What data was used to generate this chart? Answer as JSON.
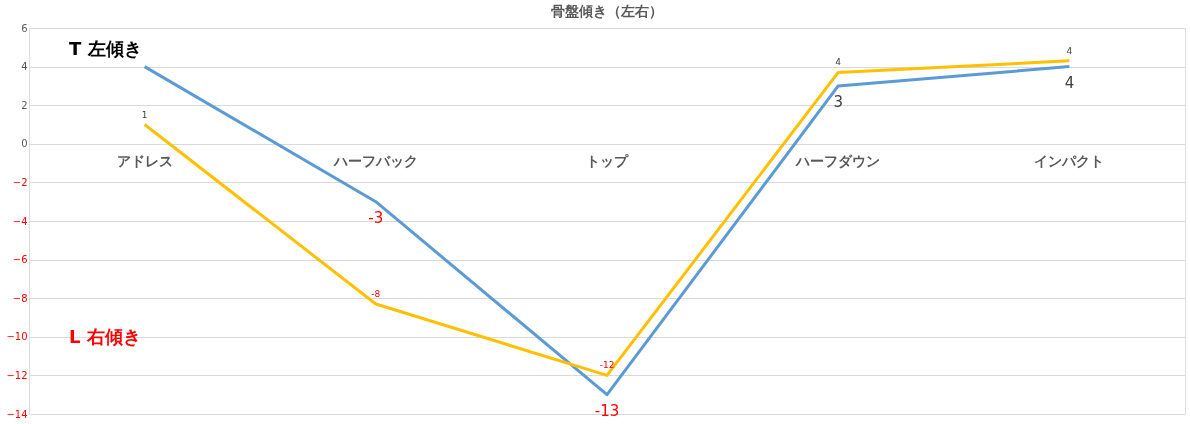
{
  "chart_data": {
    "type": "line",
    "title": "骨盤傾き（左右）",
    "categories": [
      "アドレス",
      "ハーフバック",
      "トップ",
      "ハーフダウン",
      "インパクト"
    ],
    "series": [
      {
        "color": "#5b9bd5",
        "values": [
          4,
          -3,
          -13,
          3,
          4
        ],
        "value_labels": [
          null,
          "-3",
          "-13",
          "3",
          "4"
        ]
      },
      {
        "color": "#ffc000",
        "values": [
          1,
          -8.3,
          -12,
          3.7,
          4.3
        ],
        "value_labels": [
          "1",
          "-8",
          "-12",
          "4",
          "4"
        ]
      }
    ],
    "ylim": [
      -14,
      6
    ],
    "yticks": [
      -14,
      -12,
      -10,
      -8,
      -6,
      -4,
      -2,
      0,
      2,
      4,
      6
    ],
    "grid": "y",
    "legend": false,
    "marker": "none",
    "line_style": "solid",
    "annotations": [
      "T 左傾き",
      "L 右傾き"
    ]
  }
}
